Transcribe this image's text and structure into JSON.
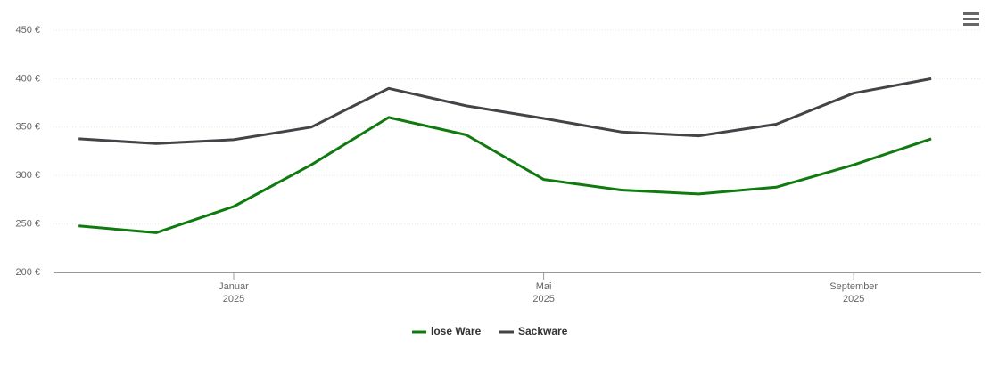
{
  "chart_data": {
    "type": "line",
    "x": [
      "2024-11",
      "2024-12",
      "2025-01",
      "2025-02",
      "2025-03",
      "2025-04",
      "2025-05",
      "2025-06",
      "2025-07",
      "2025-08",
      "2025-09",
      "2025-10"
    ],
    "series": [
      {
        "name": "lose Ware",
        "color": "#0f7b0f",
        "values": [
          248,
          241,
          268,
          311,
          360,
          342,
          296,
          285,
          281,
          288,
          311,
          338
        ]
      },
      {
        "name": "Sackware",
        "color": "#434348",
        "values": [
          338,
          333,
          337,
          350,
          390,
          372,
          359,
          345,
          341,
          353,
          385,
          400
        ]
      }
    ],
    "ylim": [
      200,
      450
    ],
    "yticks": [
      {
        "value": 200,
        "label": "200 €"
      },
      {
        "value": 250,
        "label": "250 €"
      },
      {
        "value": 300,
        "label": "300 €"
      },
      {
        "value": 350,
        "label": "350 €"
      },
      {
        "value": 400,
        "label": "400 €"
      },
      {
        "value": 450,
        "label": "450 €"
      }
    ],
    "xticks": [
      {
        "value": "2025-01",
        "label": [
          "Januar",
          "2025"
        ]
      },
      {
        "value": "2025-05",
        "label": [
          "Mai",
          "2025"
        ]
      },
      {
        "value": "2025-09",
        "label": [
          "September",
          "2025"
        ]
      }
    ],
    "grid": true,
    "legend": "bottom"
  }
}
